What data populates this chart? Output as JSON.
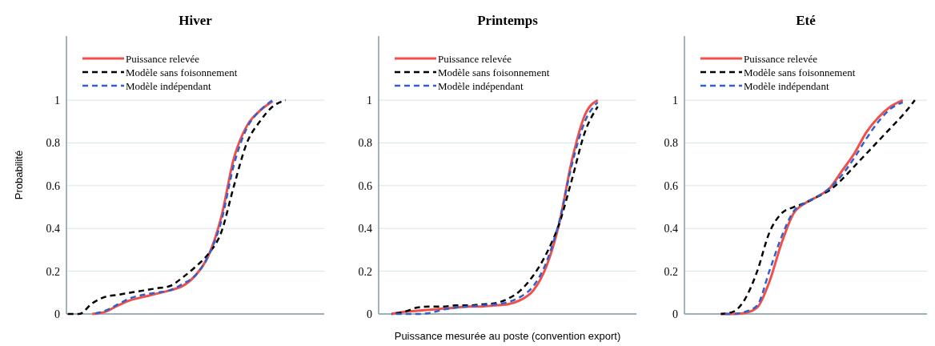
{
  "chart_data": [
    {
      "type": "line",
      "title": "Hiver",
      "ylabel": "Probabilité",
      "categories": [
        null,
        null,
        null,
        null,
        null,
        null,
        null,
        null,
        null,
        null,
        null,
        null,
        null,
        null,
        null,
        null,
        null,
        null,
        null,
        null,
        null
      ],
      "ylim": [
        0,
        1.3
      ],
      "yticks": [
        0,
        0.2,
        0.4,
        0.6,
        0.8,
        1
      ],
      "grid": "y",
      "legend": "top left",
      "tick_labels": "y",
      "series": [
        {
          "name": "Puissance relevée",
          "color": "#f0504a",
          "line_style": "solid",
          "values": [
            null,
            null,
            0,
            0.01,
            0.04,
            0.065,
            0.08,
            0.095,
            0.11,
            0.13,
            0.18,
            0.27,
            0.45,
            0.73,
            0.88,
            0.95,
            0.995,
            null,
            null,
            null,
            null
          ]
        },
        {
          "name": "Modèle sans foisonnement",
          "color": "#000000",
          "line_style": "dashed",
          "values": [
            0,
            0,
            0.05,
            0.08,
            0.09,
            0.1,
            0.11,
            0.12,
            0.13,
            0.17,
            0.22,
            0.28,
            0.38,
            0.6,
            0.8,
            0.9,
            0.97,
            1,
            null,
            null,
            null
          ]
        },
        {
          "name": "Modèle indépendant",
          "color": "#3060d0",
          "line_style": "dashed",
          "values": [
            null,
            null,
            0,
            0.015,
            0.045,
            0.075,
            0.09,
            0.1,
            0.11,
            0.14,
            0.18,
            0.27,
            0.43,
            0.7,
            0.87,
            0.95,
            1,
            null,
            null,
            null,
            null
          ]
        }
      ]
    },
    {
      "type": "line",
      "title": "Printemps",
      "xlabel": "Puissance mesurée au poste (convention export)",
      "categories": [
        null,
        null,
        null,
        null,
        null,
        null,
        null,
        null,
        null,
        null,
        null,
        null,
        null,
        null,
        null,
        null,
        null,
        null,
        null,
        null,
        null
      ],
      "ylim": [
        0,
        1.3
      ],
      "yticks": [
        0,
        0.2,
        0.4,
        0.6,
        0.8,
        1
      ],
      "grid": "y",
      "legend": "top left",
      "tick_labels": "y",
      "series": [
        {
          "name": "Puissance relevée",
          "color": "#f0504a",
          "line_style": "solid",
          "values": [
            null,
            0,
            0.01,
            0.015,
            0.02,
            0.025,
            0.03,
            0.035,
            0.035,
            0.04,
            0.045,
            0.065,
            0.11,
            0.22,
            0.42,
            0.72,
            0.93,
            1,
            null,
            null,
            null
          ]
        },
        {
          "name": "Modèle sans foisonnement",
          "color": "#000000",
          "line_style": "dashed",
          "values": [
            null,
            0,
            0.01,
            0.03,
            0.035,
            0.035,
            0.04,
            0.04,
            0.045,
            0.05,
            0.07,
            0.11,
            0.18,
            0.28,
            0.42,
            0.63,
            0.85,
            0.97,
            null,
            null,
            null
          ]
        },
        {
          "name": "Modèle indépendant",
          "color": "#3060d0",
          "line_style": "dashed",
          "values": [
            null,
            0,
            0,
            0,
            0.005,
            0.02,
            0.03,
            0.035,
            0.04,
            0.045,
            0.055,
            0.08,
            0.13,
            0.24,
            0.43,
            0.7,
            0.9,
            0.99,
            null,
            null,
            null
          ]
        }
      ]
    },
    {
      "type": "line",
      "title": "Eté",
      "categories": [
        null,
        null,
        null,
        null,
        null,
        null,
        null,
        null,
        null,
        null,
        null,
        null,
        null,
        null,
        null,
        null,
        null,
        null,
        null,
        null,
        null
      ],
      "ylim": [
        0,
        1.3
      ],
      "yticks": [
        0,
        0.2,
        0.4,
        0.6,
        0.8,
        1
      ],
      "grid": "y",
      "legend": "top left",
      "tick_labels": "y",
      "series": [
        {
          "name": "Puissance relevée",
          "color": "#f0504a",
          "line_style": "solid",
          "values": [
            null,
            null,
            null,
            0,
            0,
            0.005,
            0.03,
            0.15,
            0.33,
            0.47,
            0.52,
            0.55,
            0.59,
            0.67,
            0.75,
            0.85,
            0.92,
            0.97,
            1,
            null,
            null
          ]
        },
        {
          "name": "Modèle sans foisonnement",
          "color": "#000000",
          "line_style": "dashed",
          "values": [
            null,
            null,
            null,
            0,
            0.01,
            0.07,
            0.2,
            0.38,
            0.47,
            0.5,
            0.52,
            0.55,
            0.58,
            0.63,
            0.69,
            0.75,
            0.81,
            0.87,
            0.93,
            1,
            null
          ]
        },
        {
          "name": "Modèle indépendant",
          "color": "#3060d0",
          "line_style": "dashed",
          "values": [
            null,
            null,
            null,
            0,
            0,
            0.01,
            0.04,
            0.2,
            0.36,
            0.48,
            0.52,
            0.55,
            0.59,
            0.65,
            0.73,
            0.82,
            0.9,
            0.96,
            0.99,
            null,
            null
          ]
        }
      ]
    }
  ]
}
